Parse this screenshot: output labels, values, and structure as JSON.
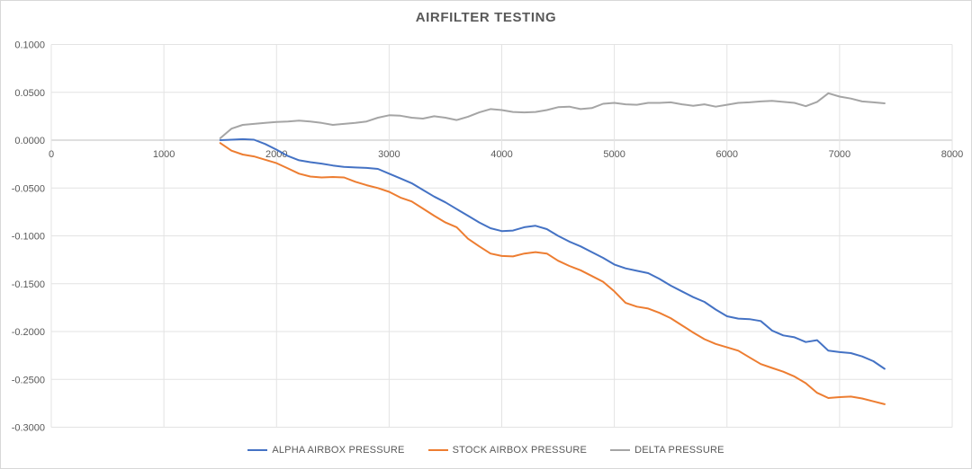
{
  "chart_data": {
    "type": "line",
    "title": "AIRFILTER TESTING",
    "xlabel": "",
    "ylabel": "",
    "grid": true,
    "legend_position": "bottom",
    "x_axis": {
      "min": 0,
      "max": 8000,
      "tick_step": 1000,
      "tick_labels": [
        "0",
        "1000",
        "2000",
        "3000",
        "4000",
        "5000",
        "6000",
        "7000",
        "8000"
      ]
    },
    "y_axis": {
      "min": -0.3,
      "max": 0.1,
      "tick_step": 0.05,
      "tick_labels": [
        "0.1000",
        "0.0500",
        "0.0000",
        "-0.0500",
        "-0.1000",
        "-0.1500",
        "-0.2000",
        "-0.2500",
        "-0.3000"
      ]
    },
    "colors": {
      "gridline": "#e3e3e3",
      "axis_line": "#bfbfbf",
      "tick_text": "#595959",
      "title_text": "#595959"
    },
    "x": [
      1500,
      1600,
      1700,
      1800,
      1900,
      2000,
      2100,
      2200,
      2300,
      2400,
      2500,
      2600,
      2700,
      2800,
      2900,
      3000,
      3100,
      3200,
      3300,
      3400,
      3500,
      3600,
      3700,
      3800,
      3900,
      4000,
      4100,
      4200,
      4300,
      4400,
      4500,
      4600,
      4700,
      4800,
      4900,
      5000,
      5100,
      5200,
      5300,
      5400,
      5500,
      5600,
      5700,
      5800,
      5900,
      6000,
      6100,
      6200,
      6300,
      6400,
      6500,
      6600,
      6700,
      6800,
      6900,
      7000,
      7100,
      7200,
      7300,
      7400
    ],
    "series": [
      {
        "name": "ALPHA AIRBOX PRESSURE",
        "color": "#4472C4",
        "values": [
          0.0,
          0.0005,
          0.001,
          0.0005,
          -0.004,
          -0.01,
          -0.0165,
          -0.021,
          -0.023,
          -0.0245,
          -0.0265,
          -0.028,
          -0.0285,
          -0.029,
          -0.03,
          -0.035,
          -0.04,
          -0.045,
          -0.052,
          -0.059,
          -0.065,
          -0.072,
          -0.079,
          -0.086,
          -0.092,
          -0.095,
          -0.0945,
          -0.091,
          -0.0895,
          -0.093,
          -0.1,
          -0.106,
          -0.111,
          -0.117,
          -0.123,
          -0.13,
          -0.134,
          -0.1365,
          -0.139,
          -0.145,
          -0.152,
          -0.158,
          -0.164,
          -0.169,
          -0.177,
          -0.184,
          -0.1865,
          -0.187,
          -0.189,
          -0.199,
          -0.204,
          -0.206,
          -0.211,
          -0.209,
          -0.22,
          -0.2215,
          -0.2225,
          -0.226,
          -0.231,
          -0.239
        ]
      },
      {
        "name": "STOCK AIRBOX PRESSURE",
        "color": "#ED7D31",
        "values": [
          -0.003,
          -0.011,
          -0.015,
          -0.017,
          -0.0205,
          -0.024,
          -0.0295,
          -0.035,
          -0.038,
          -0.039,
          -0.0385,
          -0.039,
          -0.0435,
          -0.047,
          -0.05,
          -0.054,
          -0.06,
          -0.064,
          -0.0715,
          -0.079,
          -0.086,
          -0.091,
          -0.103,
          -0.111,
          -0.1185,
          -0.121,
          -0.1215,
          -0.1185,
          -0.117,
          -0.1185,
          -0.126,
          -0.1315,
          -0.136,
          -0.142,
          -0.148,
          -0.158,
          -0.17,
          -0.174,
          -0.176,
          -0.1805,
          -0.186,
          -0.1935,
          -0.201,
          -0.208,
          -0.213,
          -0.2165,
          -0.22,
          -0.227,
          -0.234,
          -0.238,
          -0.242,
          -0.247,
          -0.254,
          -0.264,
          -0.2695,
          -0.2685,
          -0.268,
          -0.27,
          -0.273,
          -0.276
        ]
      },
      {
        "name": "DELTA PRESSURE",
        "color": "#A5A5A5",
        "values": [
          0.002,
          0.012,
          0.016,
          0.017,
          0.018,
          0.019,
          0.0195,
          0.0205,
          0.0195,
          0.018,
          0.016,
          0.017,
          0.018,
          0.0195,
          0.0235,
          0.026,
          0.0255,
          0.0235,
          0.0225,
          0.025,
          0.0235,
          0.021,
          0.0245,
          0.029,
          0.0325,
          0.0315,
          0.0295,
          0.029,
          0.0295,
          0.0315,
          0.0345,
          0.035,
          0.0325,
          0.0335,
          0.038,
          0.039,
          0.0375,
          0.037,
          0.039,
          0.039,
          0.0395,
          0.0375,
          0.036,
          0.0375,
          0.035,
          0.037,
          0.039,
          0.0395,
          0.0405,
          0.041,
          0.04,
          0.039,
          0.0355,
          0.04,
          0.049,
          0.0455,
          0.0435,
          0.0405,
          0.0395,
          0.0385
        ]
      }
    ]
  }
}
